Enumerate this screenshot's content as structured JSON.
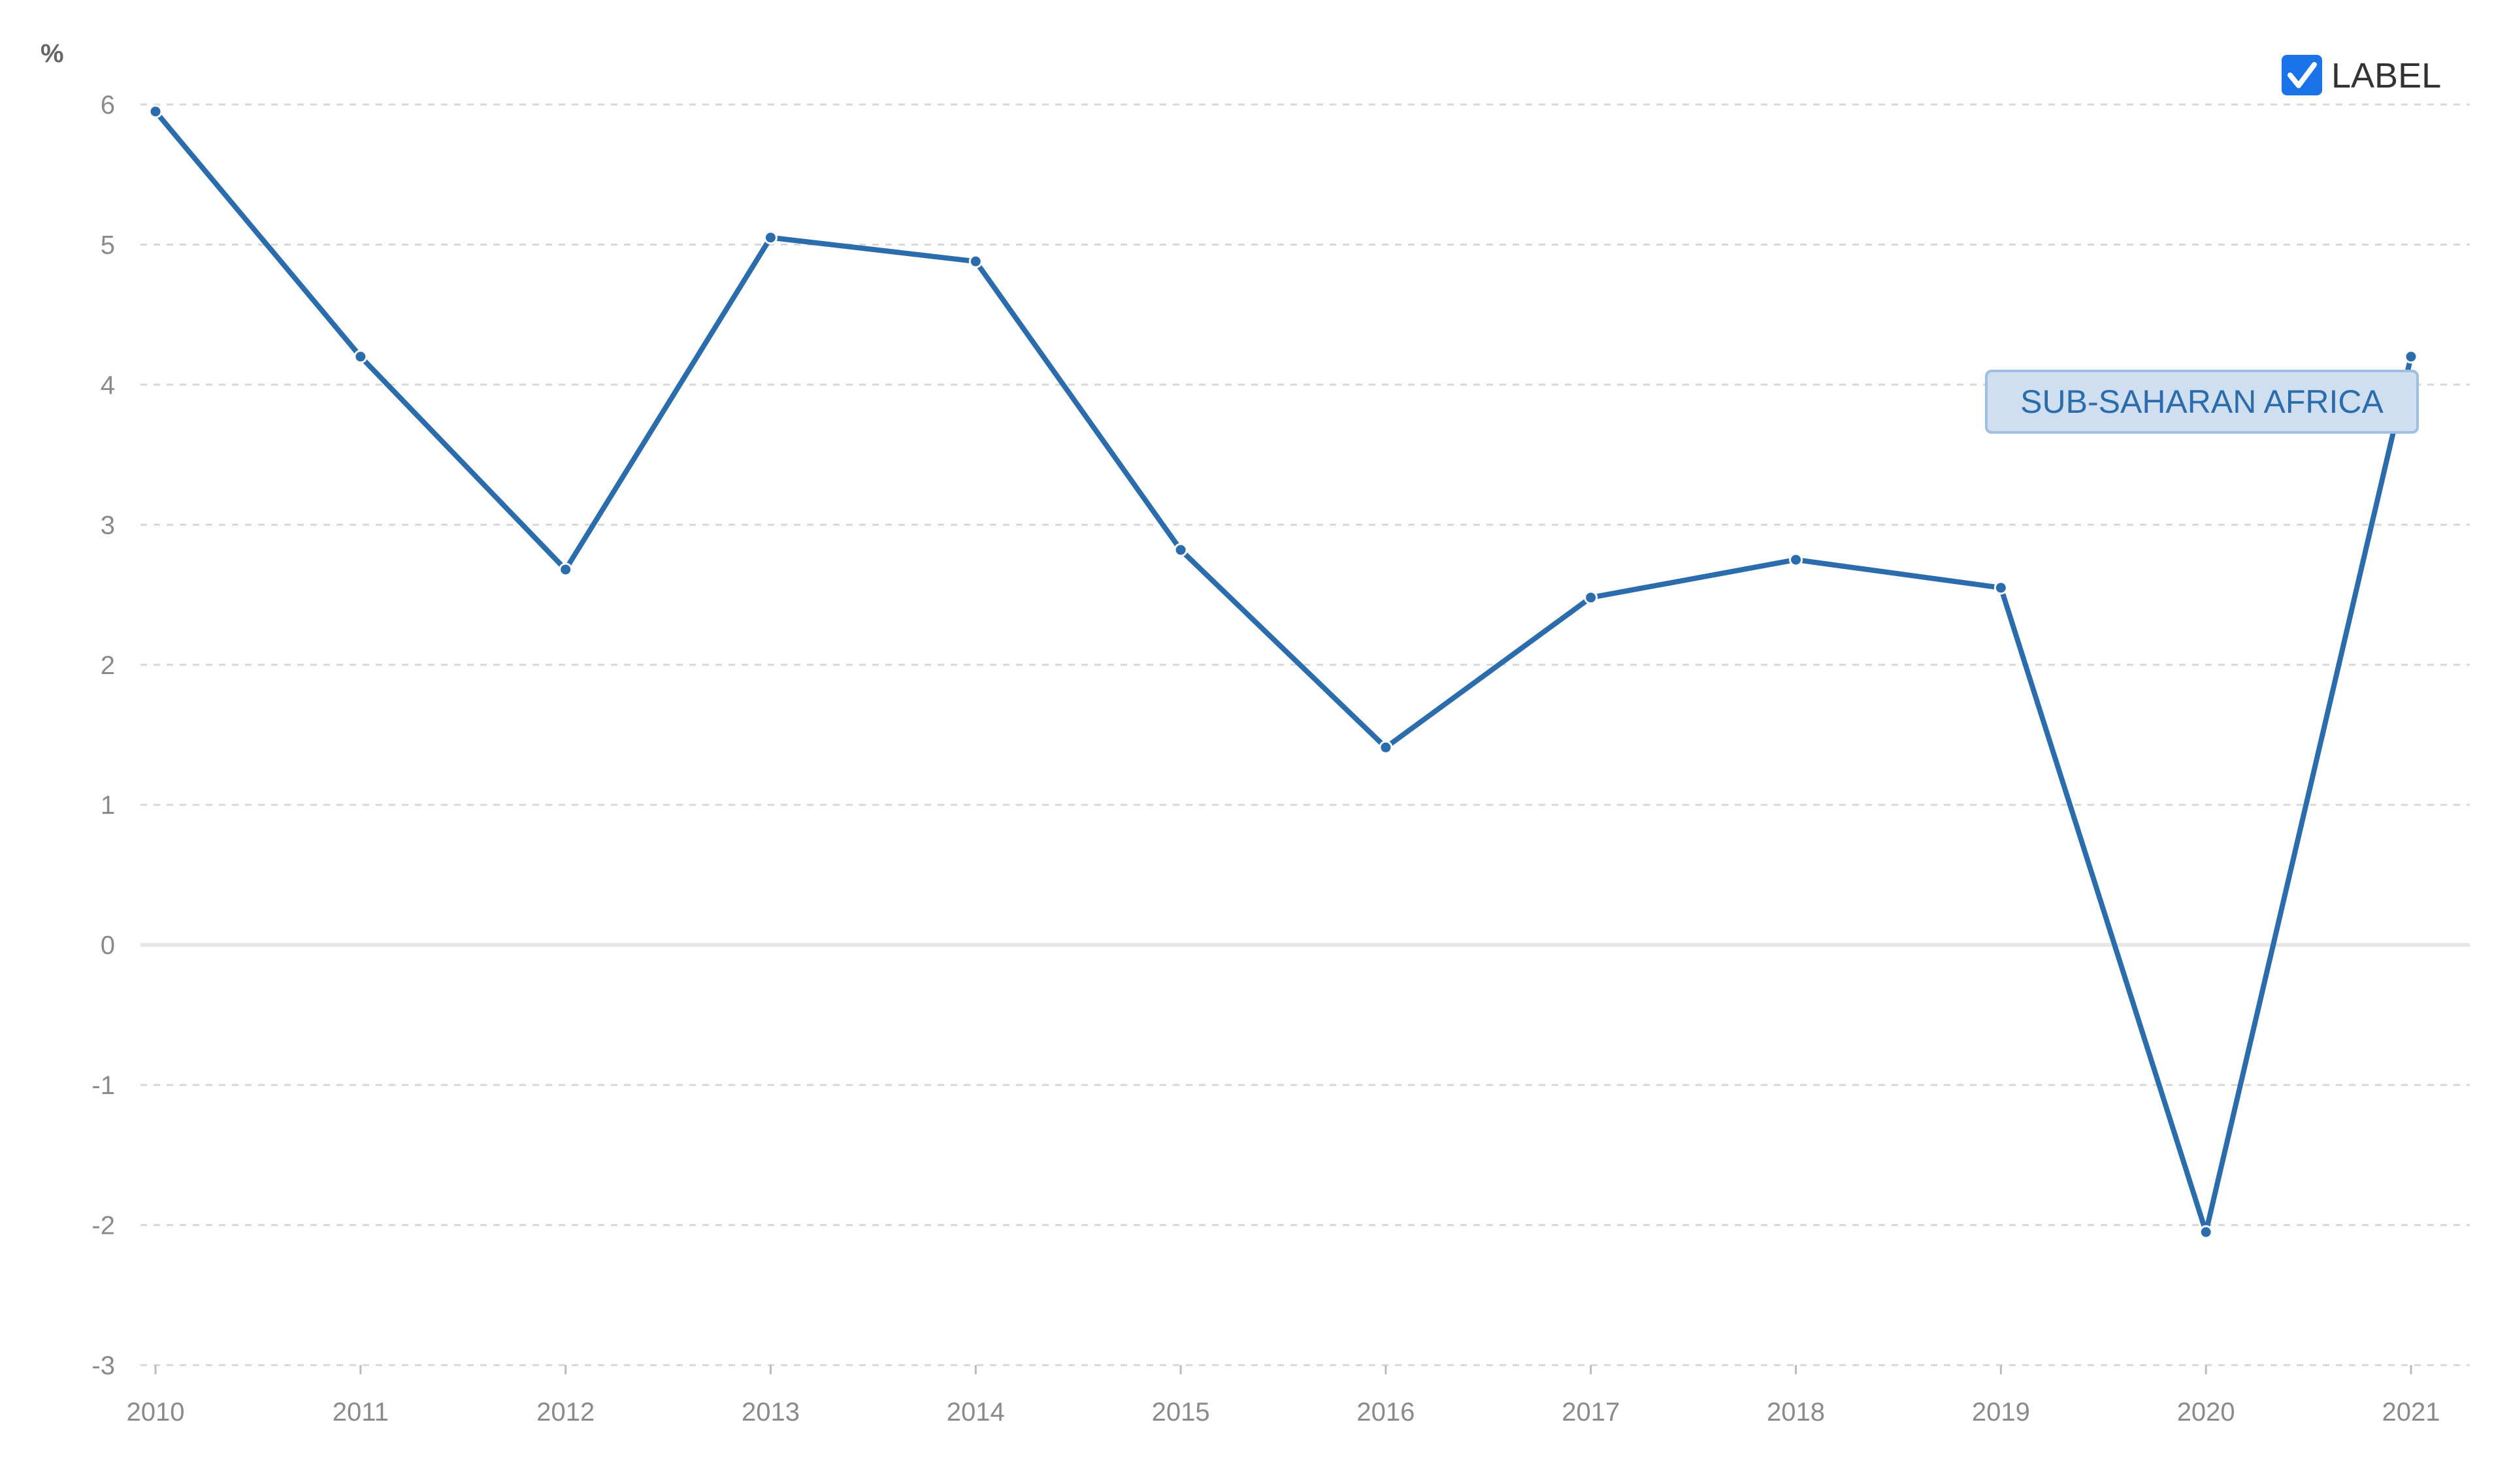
{
  "chart_data": {
    "type": "line",
    "unit_label": "%",
    "x": [
      "2010",
      "2011",
      "2012",
      "2013",
      "2014",
      "2015",
      "2016",
      "2017",
      "2018",
      "2019",
      "2020",
      "2021"
    ],
    "series": [
      {
        "name": "SUB-SAHARAN AFRICA",
        "values": [
          5.95,
          4.2,
          2.68,
          5.05,
          4.88,
          2.82,
          1.41,
          2.48,
          2.75,
          2.55,
          -2.05,
          4.2
        ]
      }
    ],
    "ylim": [
      -3,
      6
    ],
    "yticks": [
      "6",
      "5",
      "4",
      "3",
      "2",
      "1",
      "0",
      "-1",
      "-2",
      "-3"
    ],
    "grid": true,
    "legend": {
      "label": "LABEL",
      "checked": true,
      "placement": "top-right"
    },
    "tooltip": {
      "text": "SUB-SAHARAN AFRICA"
    },
    "colors": {
      "line": "#2b6cad",
      "grid": "#d8d8d8",
      "zero_line": "#e6e6e6",
      "checkbox": "#1a73e8",
      "tooltip_bg": "#cfdff0",
      "tooltip_border": "#9ebfe0"
    }
  }
}
